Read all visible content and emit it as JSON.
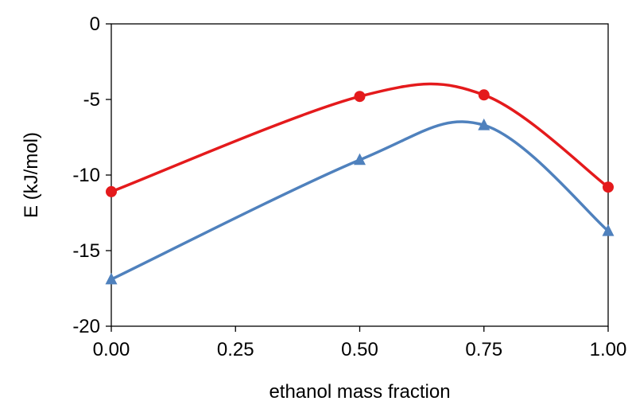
{
  "chart_data": {
    "type": "line",
    "xlabel": "ethanol mass fraction",
    "ylabel": "E (kJ/mol)",
    "xlim": [
      0,
      1
    ],
    "ylim": [
      -20,
      0
    ],
    "x_ticks": [
      "0.00",
      "0.25",
      "0.50",
      "0.75",
      "1.00"
    ],
    "y_ticks": [
      "0",
      "-5",
      "-10",
      "-15",
      "-20"
    ],
    "x_tick_values": [
      0,
      0.25,
      0.5,
      0.75,
      1
    ],
    "y_tick_values": [
      0,
      -5,
      -10,
      -15,
      -20
    ],
    "grid": false,
    "smooth": true,
    "series": [
      {
        "marker": "circle",
        "color": "#e41a1c",
        "x": [
          0.0,
          0.5,
          0.75,
          1.0
        ],
        "y": [
          -11.1,
          -4.8,
          -4.7,
          -10.8
        ]
      },
      {
        "marker": "triangle",
        "color": "#4f81bd",
        "x": [
          0.0,
          0.5,
          0.75,
          1.0
        ],
        "y": [
          -16.9,
          -9.0,
          -6.7,
          -13.7
        ]
      }
    ]
  }
}
